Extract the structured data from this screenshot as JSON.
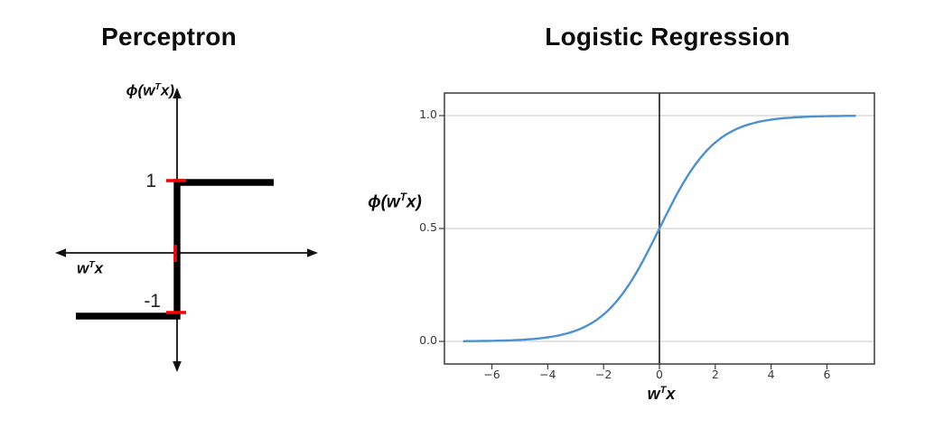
{
  "page": {
    "background": "#ffffff"
  },
  "panels": {
    "perceptron": {
      "title": "Perceptron",
      "ylabel": {
        "pre": "ϕ(",
        "w": "w",
        "sup": "T",
        "x": "x",
        "post": ")"
      },
      "xlabel": {
        "w": "w",
        "sup": "T",
        "x": "x"
      },
      "tick_plus": "1",
      "tick_minus": "-1",
      "colors": {
        "line": "#000000",
        "axis": "#111111",
        "tick": "#ff0000"
      }
    },
    "logistic": {
      "title": "Logistic Regression",
      "ylabel": {
        "pre": "ϕ(",
        "w": "w",
        "sup": "T",
        "x": "x",
        "post": ")"
      },
      "xlabel": {
        "w": "w",
        "sup": "T",
        "x": "x"
      },
      "ytick_labels": [
        "1.0",
        "0.5",
        "0.0"
      ],
      "xtick_labels": [
        "−6",
        "−4",
        "−2",
        "0",
        "2",
        "4",
        "6"
      ],
      "colors": {
        "curve": "#4a90d2",
        "grid": "#c9c9c9",
        "spine": "#3c3c3c",
        "axvline": "#3c3c3c"
      }
    }
  },
  "chart_data": [
    {
      "type": "line",
      "title": "Perceptron",
      "xlabel": "wᵀx",
      "ylabel": "ϕ(wᵀx)",
      "description": "Schematic unit-step activation: ϕ(wᵀx) = 1 for wᵀx ≥ 0, −1 otherwise; red tick marks at y = 1, y = −1 and at the origin; arrows on both axes.",
      "series": [
        {
          "name": "unit step",
          "points": [
            [
              -1.4,
              -1
            ],
            [
              0,
              -1
            ],
            [
              0,
              1
            ],
            [
              1.3,
              1
            ]
          ]
        }
      ],
      "yticks": [
        -1,
        1
      ],
      "grid": false,
      "tick_color": "#ff0000",
      "line_color": "#000000"
    },
    {
      "type": "line",
      "title": "Logistic Regression",
      "xlabel": "wᵀx",
      "ylabel": "ϕ(wᵀx)",
      "function": "sigmoid ϕ(z) = 1 / (1 + exp(−z))",
      "x_range": [
        -7,
        7
      ],
      "xlim": [
        -7.7,
        7.7
      ],
      "ylim": [
        -0.1,
        1.1
      ],
      "xticks": [
        -6,
        -4,
        -2,
        0,
        2,
        4,
        6
      ],
      "yticks": [
        0.0,
        0.5,
        1.0
      ],
      "grid": true,
      "legend": "none",
      "axvline_x": 0,
      "line_color": "#4a90d2"
    }
  ]
}
